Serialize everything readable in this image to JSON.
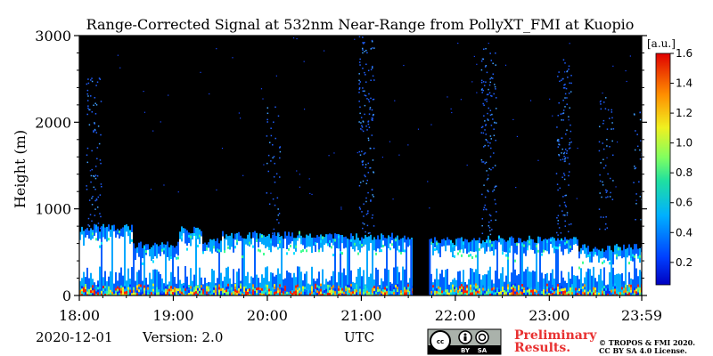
{
  "chart_data": {
    "type": "heatmap",
    "title": "Range-Corrected Signal at 532nm Near-Range from PollyXT_FMI at Kuopio",
    "ylabel": "Height (m)",
    "xlabel": "UTC",
    "x_ticks": [
      "18:00",
      "19:00",
      "20:00",
      "21:00",
      "22:00",
      "23:00",
      "23:59"
    ],
    "x_range_hours": [
      18.0,
      23.983
    ],
    "y_ticks": [
      "0",
      "1000",
      "2000",
      "3000"
    ],
    "ylim": [
      0,
      3000
    ],
    "colorbar": {
      "unit": "[a.u.]",
      "ticks": [
        "0.2",
        "0.4",
        "0.6",
        "0.8",
        "1.0",
        "1.2",
        "1.4",
        "1.6"
      ],
      "range": [
        0.05,
        1.6
      ],
      "colormap": "jet"
    },
    "no_data_intervals_hours": [
      [
        21.53,
        21.73
      ]
    ],
    "layers": [
      {
        "start": 18.0,
        "end": 18.55,
        "top_m": 780
      },
      {
        "start": 18.55,
        "end": 19.05,
        "top_m": 580
      },
      {
        "start": 19.05,
        "end": 19.3,
        "top_m": 760
      },
      {
        "start": 19.3,
        "end": 19.5,
        "top_m": 630
      },
      {
        "start": 19.5,
        "end": 20.6,
        "top_m": 700
      },
      {
        "start": 20.6,
        "end": 21.53,
        "top_m": 680
      },
      {
        "start": 21.73,
        "end": 22.3,
        "top_m": 630
      },
      {
        "start": 22.3,
        "end": 23.3,
        "top_m": 650
      },
      {
        "start": 23.3,
        "end": 23.983,
        "top_m": 550
      }
    ]
  },
  "footer": {
    "date": "2020-12-01",
    "version": "Version: 2.0",
    "utc": "UTC",
    "preliminary_line1": "Preliminary",
    "preliminary_line2": "Results.",
    "copyright_line1": "© TROPOS & FMI 2020.",
    "copyright_line2": "CC BY SA 4.0 License.",
    "license_badge": {
      "by": "BY",
      "sa": "SA",
      "cc": "cc"
    }
  },
  "colors": {
    "background": "#000000",
    "jet_low": "#0000ff",
    "jet_high": "#ff0000",
    "prelim": "#e83030"
  }
}
